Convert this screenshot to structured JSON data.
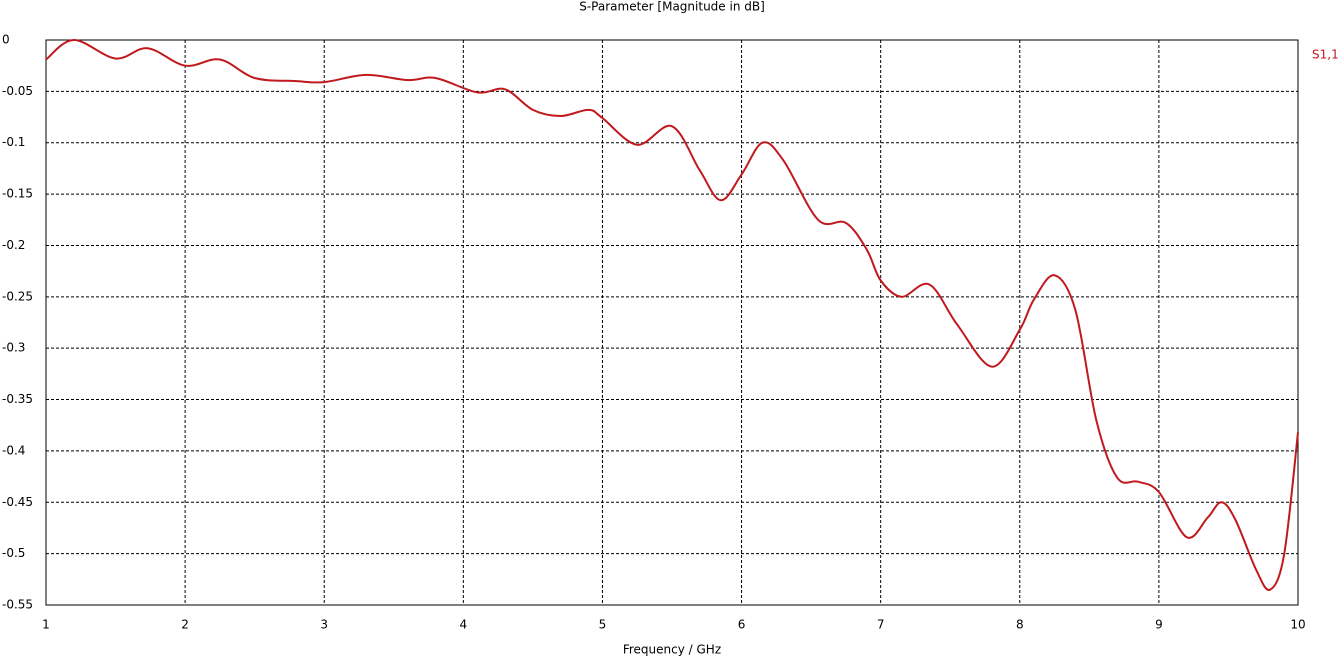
{
  "chart_data": {
    "type": "line",
    "title": "S-Parameter [Magnitude in dB]",
    "x_label": "Frequency / GHz",
    "x": [
      1.0,
      1.2,
      1.5,
      1.73,
      2.0,
      2.25,
      2.5,
      2.8,
      3.0,
      3.3,
      3.6,
      3.8,
      4.1,
      4.3,
      4.5,
      4.7,
      4.9,
      5.0,
      5.25,
      5.5,
      5.7,
      5.85,
      6.0,
      6.15,
      6.3,
      6.55,
      6.75,
      6.9,
      7.0,
      7.15,
      7.35,
      7.55,
      7.8,
      8.0,
      8.1,
      8.25,
      8.4,
      8.55,
      8.7,
      8.85,
      9.0,
      9.2,
      9.35,
      9.45,
      9.55,
      9.7,
      9.8,
      9.9,
      10.0
    ],
    "series": [
      {
        "name": "S1,1",
        "color": "#c0191e",
        "values": [
          -0.019,
          0,
          -0.018,
          -0.008,
          -0.025,
          -0.019,
          -0.037,
          -0.04,
          -0.041,
          -0.034,
          -0.039,
          -0.037,
          -0.051,
          -0.048,
          -0.068,
          -0.074,
          -0.068,
          -0.076,
          -0.102,
          -0.084,
          -0.127,
          -0.156,
          -0.131,
          -0.1,
          -0.117,
          -0.175,
          -0.178,
          -0.204,
          -0.234,
          -0.25,
          -0.238,
          -0.277,
          -0.318,
          -0.282,
          -0.253,
          -0.229,
          -0.263,
          -0.37,
          -0.426,
          -0.43,
          -0.44,
          -0.484,
          -0.465,
          -0.45,
          -0.467,
          -0.516,
          -0.535,
          -0.501,
          -0.382
        ]
      }
    ],
    "xlim": [
      1,
      10
    ],
    "xticks": [
      1,
      2,
      3,
      4,
      5,
      6,
      7,
      8,
      9,
      10
    ],
    "ylim": [
      -0.55,
      0
    ],
    "yticks": [
      0,
      -0.05,
      -0.1,
      -0.15,
      -0.2,
      -0.25,
      -0.3,
      -0.35,
      -0.4,
      -0.45,
      -0.5,
      -0.55
    ],
    "grid": true
  }
}
